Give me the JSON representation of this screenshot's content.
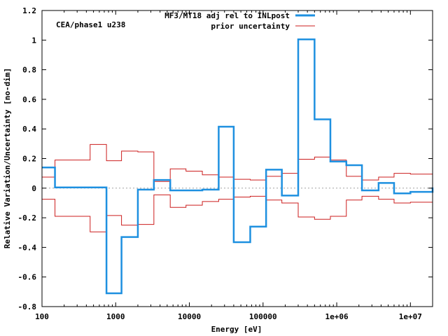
{
  "chart_data": {
    "type": "line",
    "title": "",
    "annotation": "CEA/phase1 u238",
    "xlabel": "Energy [eV]",
    "ylabel": "Relative Variation/Uncertainty [no-dim]",
    "xscale": "log",
    "xlim": [
      100,
      20000000
    ],
    "ylim": [
      -0.8,
      1.2
    ],
    "x_ticks": [
      {
        "value": 100,
        "label": "100"
      },
      {
        "value": 1000,
        "label": "1000"
      },
      {
        "value": 10000,
        "label": "10000"
      },
      {
        "value": 100000,
        "label": "100000"
      },
      {
        "value": 1000000,
        "label": "1e+06"
      },
      {
        "value": 10000000,
        "label": "1e+07"
      }
    ],
    "y_ticks": [
      {
        "value": 1.2,
        "label": "1.2"
      },
      {
        "value": 1.0,
        "label": "1"
      },
      {
        "value": 0.8,
        "label": "0.8"
      },
      {
        "value": 0.6,
        "label": "0.6"
      },
      {
        "value": 0.4,
        "label": "0.4"
      },
      {
        "value": 0.2,
        "label": "0.2"
      },
      {
        "value": 0.0,
        "label": "0"
      },
      {
        "value": -0.2,
        "label": "-0.2"
      },
      {
        "value": -0.4,
        "label": "-0.4"
      },
      {
        "value": -0.6,
        "label": "-0.6"
      },
      {
        "value": -0.8,
        "label": "-0.8"
      }
    ],
    "bin_edges": [
      100,
      150,
      450,
      750,
      1200,
      2000,
      3300,
      5500,
      9000,
      15000,
      25000,
      40000,
      67000,
      110000,
      180000,
      300000,
      500000,
      820000,
      1350000,
      2200000,
      3700000,
      6000000,
      10000000,
      20000000
    ],
    "legend": {
      "position": "top-right"
    },
    "series": [
      {
        "name": "MF3/MT18 adj rel to INLpost",
        "color": "#1e90e0",
        "style": "step",
        "values": [
          0.14,
          0.005,
          0.005,
          -0.71,
          -0.33,
          -0.01,
          0.055,
          -0.015,
          -0.015,
          -0.01,
          0.415,
          -0.365,
          -0.26,
          0.125,
          -0.05,
          1.005,
          0.465,
          0.18,
          0.155,
          -0.015,
          0.035,
          -0.035,
          -0.025,
          0.005
        ]
      },
      {
        "name": "prior uncertainty",
        "color": "#cc1e1e",
        "style": "step",
        "symmetric": true,
        "values": [
          0.075,
          0.19,
          0.295,
          0.185,
          0.25,
          0.245,
          0.045,
          0.13,
          0.115,
          0.09,
          0.075,
          0.06,
          0.055,
          0.08,
          0.1,
          0.195,
          0.21,
          0.19,
          0.08,
          0.055,
          0.075,
          0.1,
          0.095,
          0.045
        ]
      }
    ],
    "zero_line": true
  }
}
